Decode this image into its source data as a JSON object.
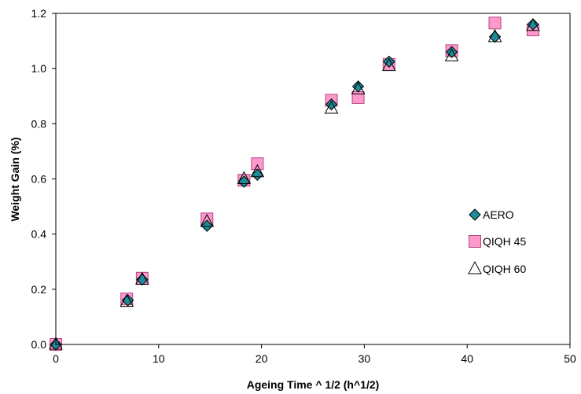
{
  "chart_data": {
    "type": "scatter",
    "xlabel": "Ageing Time ^ 1/2 (h^1/2)",
    "ylabel": "Weight Gain (%)",
    "xlim": [
      0,
      50
    ],
    "ylim": [
      0,
      1.2
    ],
    "x_ticks": [
      "0",
      "10",
      "20",
      "30",
      "40",
      "50"
    ],
    "y_ticks": [
      "0.0",
      "0.2",
      "0.4",
      "0.6",
      "0.8",
      "1.0",
      "1.2"
    ],
    "x_tick_values": [
      0,
      10,
      20,
      30,
      40,
      50
    ],
    "y_tick_values": [
      0,
      0.2,
      0.4,
      0.6,
      0.8,
      1.0,
      1.2
    ],
    "grid": false,
    "legend_position": "right",
    "series": [
      {
        "name": "AERO",
        "marker": "diamond",
        "color": "#1f8a99",
        "points": [
          [
            0,
            0.0
          ],
          [
            7,
            0.16
          ],
          [
            8.4,
            0.235
          ],
          [
            14.7,
            0.43
          ],
          [
            18.3,
            0.59
          ],
          [
            19.6,
            0.615
          ],
          [
            26.8,
            0.87
          ],
          [
            29.4,
            0.935
          ],
          [
            32.4,
            1.025
          ],
          [
            38.5,
            1.06
          ],
          [
            42.7,
            1.115
          ],
          [
            46.4,
            1.16
          ]
        ]
      },
      {
        "name": "QIQH 45",
        "marker": "square",
        "color": "#ff99cc",
        "points": [
          [
            0,
            0.0
          ],
          [
            6.9,
            0.165
          ],
          [
            8.4,
            0.24
          ],
          [
            14.7,
            0.455
          ],
          [
            18.3,
            0.595
          ],
          [
            19.6,
            0.655
          ],
          [
            26.8,
            0.885
          ],
          [
            29.4,
            0.895
          ],
          [
            32.4,
            1.015
          ],
          [
            38.5,
            1.065
          ],
          [
            42.7,
            1.165
          ],
          [
            46.4,
            1.14
          ]
        ]
      },
      {
        "name": "QIQH 60",
        "marker": "triangle",
        "color": "#ffffff",
        "points": [
          [
            0,
            0.0
          ],
          [
            6.9,
            0.155
          ],
          [
            8.4,
            0.235
          ],
          [
            14.7,
            0.445
          ],
          [
            18.3,
            0.6
          ],
          [
            19.6,
            0.625
          ],
          [
            26.8,
            0.855
          ],
          [
            29.4,
            0.925
          ],
          [
            32.4,
            1.01
          ],
          [
            38.5,
            1.045
          ],
          [
            42.7,
            1.115
          ],
          [
            46.4,
            1.155
          ]
        ]
      }
    ]
  }
}
